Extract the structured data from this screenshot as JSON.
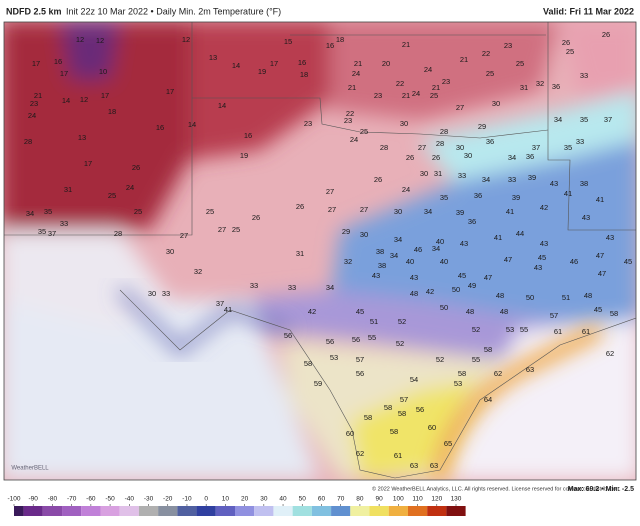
{
  "header": {
    "title": "NDFD 2.5 km",
    "subtitle": "Init 22z 10 Mar 2022 • Daily Min. 2m Temperature (°F)",
    "valid": "Valid: Fri 11 Mar 2022"
  },
  "map": {
    "labels": [
      12,
      12,
      12,
      15,
      16,
      18,
      21,
      23,
      26,
      26,
      25,
      16,
      17,
      10,
      17,
      13,
      14,
      19,
      17,
      16,
      18,
      20,
      24,
      21,
      22,
      25,
      25,
      23,
      21,
      24,
      22,
      24,
      25,
      21,
      21,
      23,
      21,
      31,
      32,
      36,
      33,
      17,
      21,
      23,
      14,
      12,
      17,
      18,
      14,
      27,
      30,
      24,
      16,
      14,
      16,
      23,
      22,
      23,
      25,
      30,
      28,
      29,
      35,
      37,
      34,
      28,
      13,
      24,
      28,
      27,
      28,
      30,
      30,
      36,
      37,
      19,
      26,
      26,
      34,
      36,
      35,
      33,
      17,
      26,
      26,
      30,
      31,
      33,
      34,
      33,
      39,
      38,
      24,
      31,
      27,
      24,
      35,
      36,
      39,
      43,
      41,
      41,
      42,
      25,
      25,
      25,
      26,
      26,
      27,
      27,
      30,
      34,
      39,
      36,
      41,
      34,
      35,
      33,
      35,
      37,
      27,
      27,
      25,
      28,
      29,
      30,
      34,
      40,
      34,
      43,
      41,
      44,
      43,
      43,
      43,
      30,
      31,
      32,
      38,
      34,
      40,
      46,
      38,
      32,
      40,
      47,
      45,
      46,
      47,
      45,
      43,
      43,
      45,
      47,
      43,
      47,
      33,
      33,
      34,
      30,
      33,
      37,
      41,
      48,
      42,
      50,
      49,
      48,
      50,
      51,
      48,
      42,
      45,
      51,
      52,
      50,
      48,
      48,
      45,
      56,
      56,
      56,
      55,
      52,
      52,
      53,
      55,
      57,
      61,
      61,
      58,
      58,
      53,
      57,
      56,
      52,
      55,
      53,
      58,
      62,
      54,
      58,
      62,
      63,
      57,
      58,
      58,
      58,
      56,
      59,
      60,
      58,
      60,
      64,
      62,
      61,
      63,
      63,
      65
    ]
  },
  "footer": {
    "copyright": "© 2022 WeatherBELL Analytics, LLC. All rights reserved. License reserved for commercial distribution.",
    "stats": "Max: 69.2 • Min: -2.5",
    "logo": "WeatherBELL"
  },
  "colorbar": {
    "ticks": [
      -100,
      -90,
      -80,
      -70,
      -60,
      -50,
      -40,
      -30,
      -20,
      -10,
      0,
      10,
      20,
      30,
      40,
      50,
      60,
      70,
      80,
      90,
      100,
      110,
      120,
      130
    ],
    "colors": [
      "#3a1a5a",
      "#6a2a8a",
      "#8a4aa8",
      "#a060c0",
      "#c080d8",
      "#d8a0e0",
      "#e0c0e8",
      "#b0b0b0",
      "#8890a0",
      "#5060a0",
      "#3040a0",
      "#6060c0",
      "#9090e0",
      "#c0c0f0",
      "#e0f0f8",
      "#a0e0e0",
      "#80c0e0",
      "#6090d0",
      "#f0f0a0",
      "#f0e060",
      "#f0b040",
      "#e07020",
      "#c03010",
      "#801010"
    ]
  }
}
